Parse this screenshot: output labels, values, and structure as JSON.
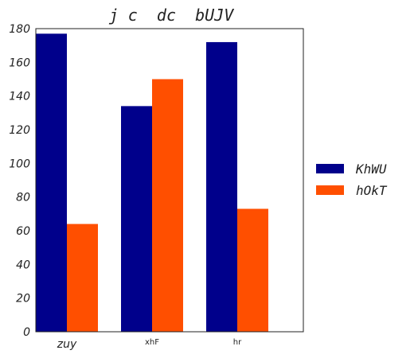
{
  "chart_data": {
    "type": "bar",
    "title": "j c  dc  bUJV",
    "categories": [
      "zuy",
      "xhF",
      "hr"
    ],
    "series": [
      {
        "name": "KhWU",
        "color": "#00008b",
        "values": [
          177,
          134,
          172
        ]
      },
      {
        "name": "hOkT",
        "color": "#ff4f00",
        "values": [
          64,
          150,
          73
        ]
      }
    ],
    "ylim": [
      0,
      180
    ],
    "yticks": [
      0,
      20,
      40,
      60,
      80,
      100,
      120,
      140,
      160,
      180
    ],
    "grid": false,
    "legend_position": "right"
  }
}
